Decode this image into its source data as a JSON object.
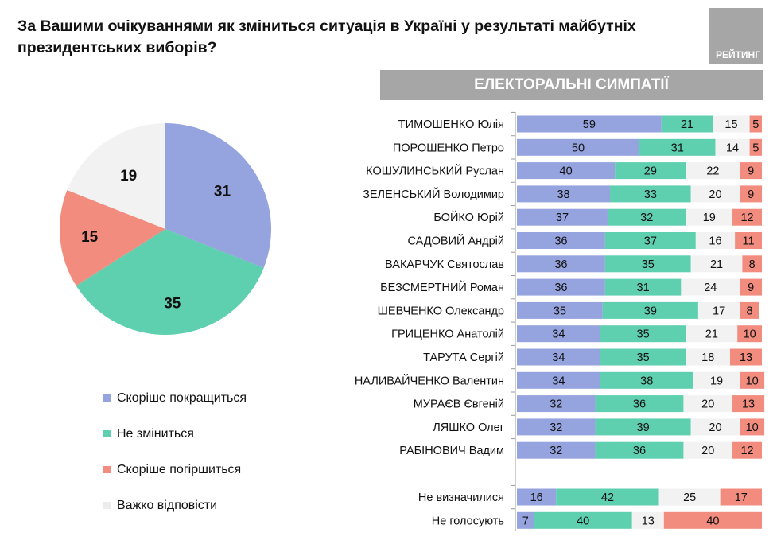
{
  "title": "За Вашими очікуваннями як зміниться ситуація в Україні у результаті майбутніх президентських виборів?",
  "logo": "РЕЙТИНГ",
  "band": "ЕЛЕКТОРАЛЬНІ СИМПАТІЇ",
  "colors": {
    "improve": "#95A3DE",
    "same": "#5ECFAF",
    "worse": "#F28C7F",
    "hard": "#F2F2F2"
  },
  "legend": [
    "Скоріше покращиться",
    "Не зміниться",
    "Скоріше погіршиться",
    "Важко відповісти"
  ],
  "chart_data": [
    {
      "type": "pie",
      "categories": [
        "Скоріше покращиться",
        "Не зміниться",
        "Скоріше погіршиться",
        "Важко відповісти"
      ],
      "values": [
        31,
        35,
        15,
        19
      ]
    },
    {
      "type": "bar",
      "orientation": "horizontal",
      "stacked": true,
      "xlim": [
        0,
        100
      ],
      "series": [
        {
          "name": "Скоріше покращиться"
        },
        {
          "name": "Не зміниться"
        },
        {
          "name": "Важко відповісти"
        },
        {
          "name": "Скоріше погіршиться"
        }
      ],
      "rows": [
        {
          "label": "ТИМОШЕНКО Юлія",
          "values": [
            59,
            21,
            15,
            5
          ]
        },
        {
          "label": "ПОРОШЕНКО Петро",
          "values": [
            50,
            31,
            14,
            5
          ]
        },
        {
          "label": "КОШУЛИНСЬКИЙ Руслан",
          "values": [
            40,
            29,
            22,
            9
          ]
        },
        {
          "label": "ЗЕЛЕНСЬКИЙ Володимир",
          "values": [
            38,
            33,
            20,
            9
          ]
        },
        {
          "label": "БОЙКО Юрій",
          "values": [
            37,
            32,
            19,
            12
          ]
        },
        {
          "label": "САДОВИЙ Андрій",
          "values": [
            36,
            37,
            16,
            11
          ]
        },
        {
          "label": "ВАКАРЧУК Святослав",
          "values": [
            36,
            35,
            21,
            8
          ]
        },
        {
          "label": "БЕЗСМЕРТНИЙ Роман",
          "values": [
            36,
            31,
            24,
            9
          ]
        },
        {
          "label": "ШЕВЧЕНКО Олександр",
          "values": [
            35,
            39,
            17,
            8
          ]
        },
        {
          "label": "ГРИЦЕНКО Анатолій",
          "values": [
            34,
            35,
            21,
            10
          ]
        },
        {
          "label": "ТАРУТА Сергій",
          "values": [
            34,
            35,
            18,
            13
          ]
        },
        {
          "label": "НАЛИВАЙЧЕНКО Валентин",
          "values": [
            34,
            38,
            19,
            10
          ]
        },
        {
          "label": "МУРАЄВ Євгеній",
          "values": [
            32,
            36,
            20,
            13
          ]
        },
        {
          "label": "ЛЯШКО Олег",
          "values": [
            32,
            39,
            20,
            10
          ]
        },
        {
          "label": "РАБІНОВИЧ Вадим",
          "values": [
            32,
            36,
            20,
            12
          ]
        },
        {
          "label": "Не визначилися",
          "values": [
            16,
            42,
            25,
            17
          ]
        },
        {
          "label": "Не голосують",
          "values": [
            7,
            40,
            13,
            40
          ]
        }
      ]
    }
  ]
}
